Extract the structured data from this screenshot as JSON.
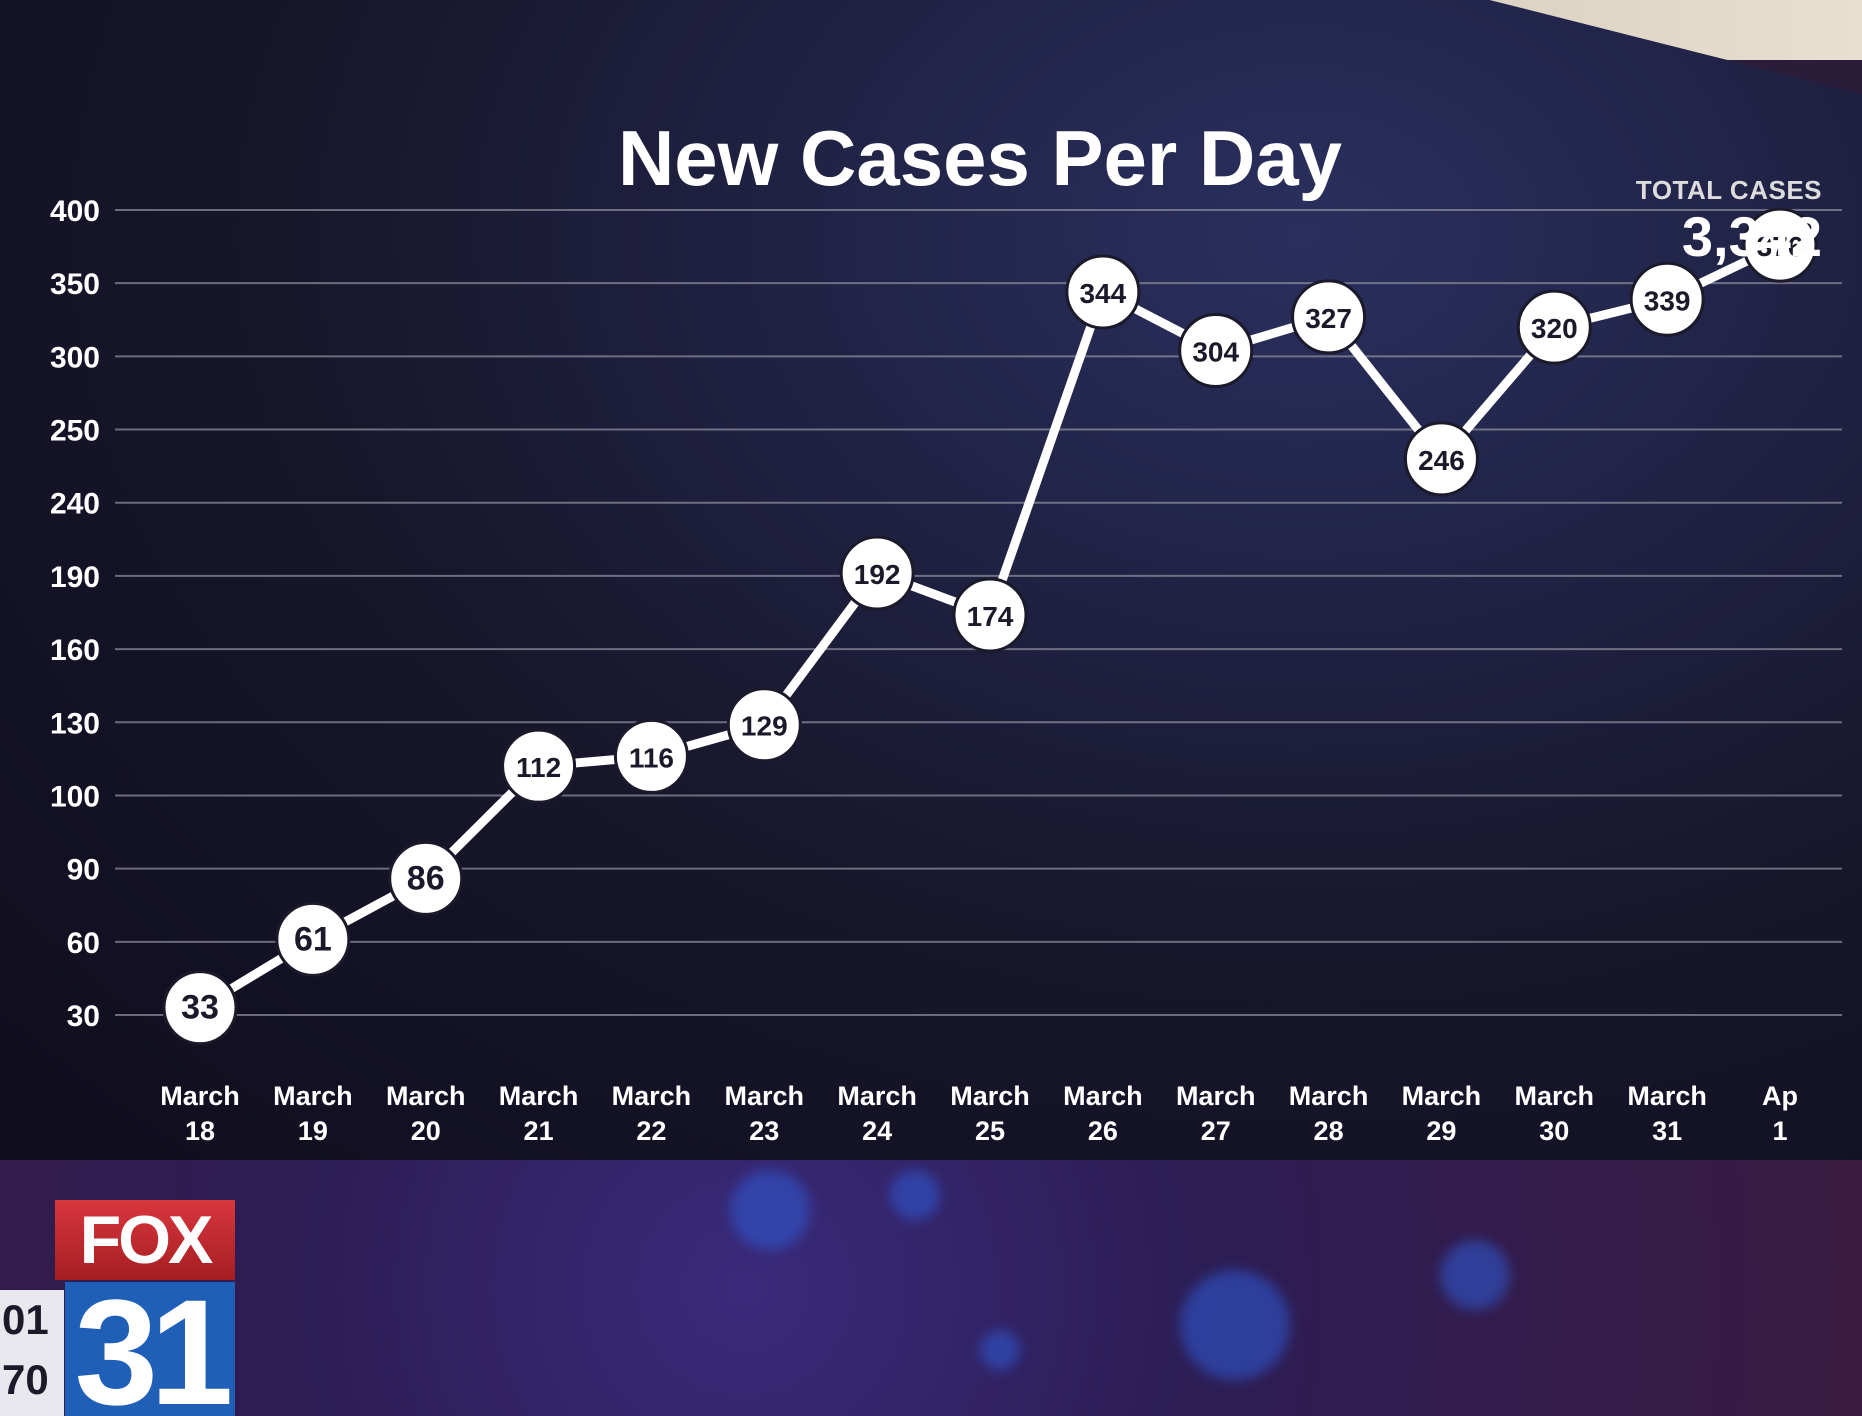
{
  "chart_data": {
    "type": "line",
    "title": "New Cases Per Day",
    "total": {
      "label": "TOTAL CASES",
      "value": "3,342"
    },
    "y_ticks": [
      "400",
      "350",
      "300",
      "250",
      "240",
      "190",
      "160",
      "130",
      "100",
      "90",
      "60",
      "30"
    ],
    "categories": [
      [
        "March",
        "18"
      ],
      [
        "March",
        "19"
      ],
      [
        "March",
        "20"
      ],
      [
        "March",
        "21"
      ],
      [
        "March",
        "22"
      ],
      [
        "March",
        "23"
      ],
      [
        "March",
        "24"
      ],
      [
        "March",
        "25"
      ],
      [
        "March",
        "26"
      ],
      [
        "March",
        "27"
      ],
      [
        "March",
        "28"
      ],
      [
        "March",
        "29"
      ],
      [
        "March",
        "30"
      ],
      [
        "March",
        "31"
      ],
      [
        "Ap",
        "1"
      ]
    ],
    "values": [
      33,
      61,
      86,
      112,
      116,
      129,
      192,
      174,
      344,
      304,
      327,
      246,
      320,
      339,
      376
    ],
    "grid": true,
    "colors": {
      "line": "#ffffff",
      "marker_fill": "#ffffff",
      "marker_text": "#1a1a2a",
      "grid": "#8a8a9a",
      "text": "#ffffff"
    }
  },
  "logo": {
    "network": "FOX",
    "channel": "31"
  },
  "clock": {
    "text": "01\n70"
  }
}
